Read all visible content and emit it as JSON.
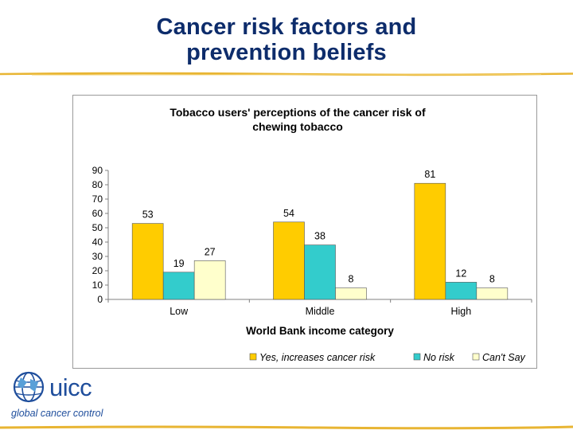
{
  "slide": {
    "title_line1": "Cancer risk factors and",
    "title_line2": "prevention beliefs",
    "title_color": "#0d2c6b",
    "accent_color": "#e8b533"
  },
  "logo": {
    "name": "uicc",
    "tagline": "global cancer control",
    "color": "#1f4e9c",
    "icon": "globe-icon"
  },
  "chart_data": {
    "type": "bar",
    "title_line1": "Tobacco users' perceptions of the cancer risk of",
    "title_line2": "chewing tobacco",
    "xlabel": "World Bank income category",
    "ylabel": "",
    "categories": [
      "Low",
      "Middle",
      "High"
    ],
    "ylim": [
      0,
      90
    ],
    "yticks": [
      0,
      10,
      20,
      30,
      40,
      50,
      60,
      70,
      80,
      90
    ],
    "grid": false,
    "legend_position": "bottom",
    "series": [
      {
        "name": "Yes, increases cancer risk",
        "values": [
          53,
          54,
          81
        ],
        "color": "#ffcc00"
      },
      {
        "name": "No risk",
        "values": [
          19,
          38,
          12
        ],
        "color": "#33cccc"
      },
      {
        "name": "Can't Say",
        "values": [
          27,
          8,
          8
        ],
        "color": "#ffffcc"
      }
    ]
  }
}
